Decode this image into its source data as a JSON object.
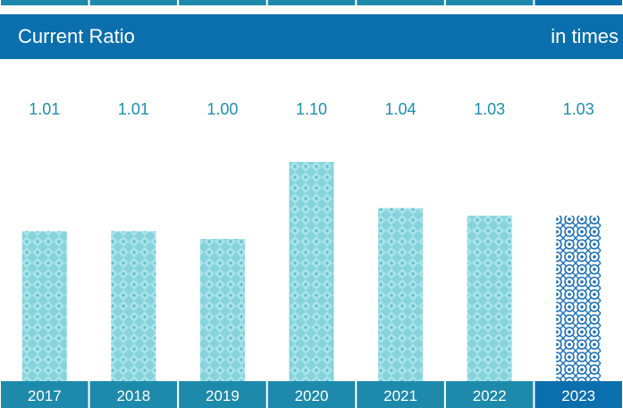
{
  "header": {
    "title": "Current Ratio",
    "unit": "in times"
  },
  "colors": {
    "header_bg": "#0b6fae",
    "tab_bg": "#1e8aab",
    "tab_highlight_bg": "#0b6fae",
    "bar_fill": "#86d3dc",
    "bar_highlight": "#1a6fb5",
    "value_text": "#1a8fb0"
  },
  "chart_data": {
    "type": "bar",
    "title": "Current Ratio",
    "unit": "in times",
    "categories": [
      "2017",
      "2018",
      "2019",
      "2020",
      "2021",
      "2022",
      "2023"
    ],
    "values": [
      1.01,
      1.01,
      1.0,
      1.1,
      1.04,
      1.03,
      1.03
    ],
    "value_labels": [
      "1.01",
      "1.01",
      "1.00",
      "1.10",
      "1.04",
      "1.03",
      "1.03"
    ],
    "highlight_category": "2023",
    "grid": false,
    "legend": "none"
  }
}
